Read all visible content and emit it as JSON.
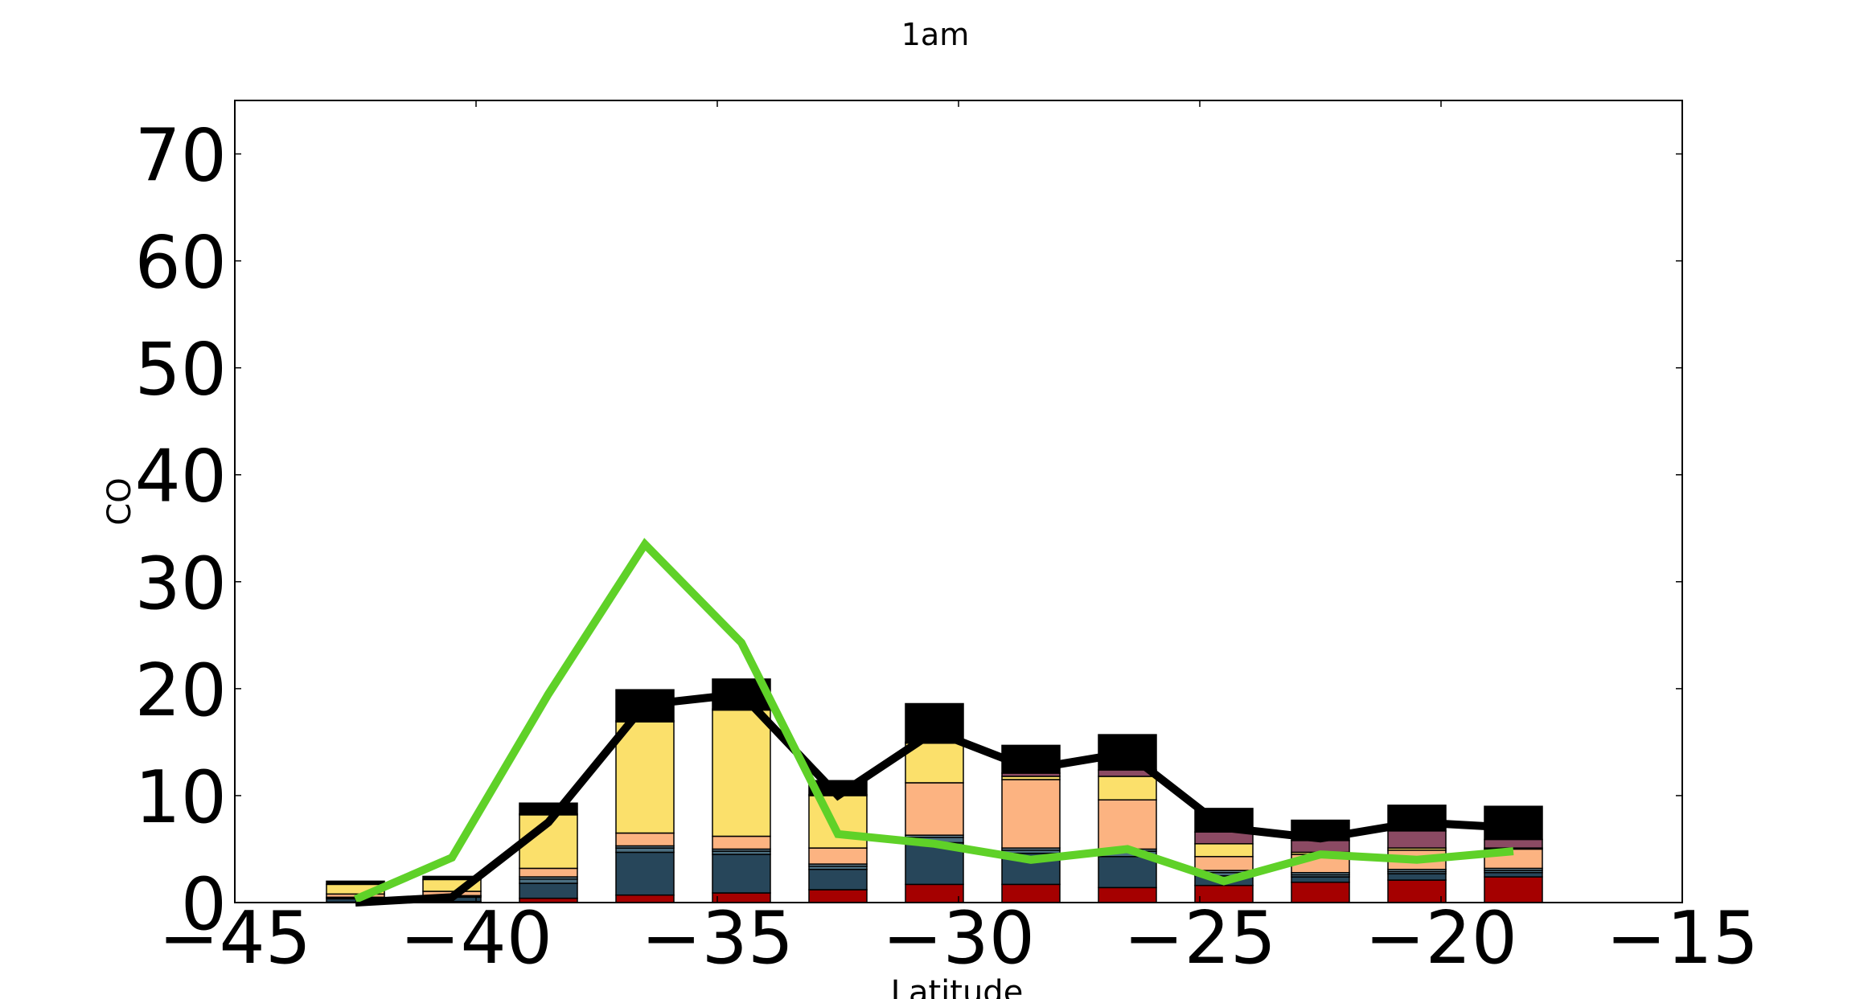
{
  "chart_data": {
    "type": "bar",
    "title": "1am",
    "xlabel": "Latitude",
    "ylabel": "CO",
    "xlim": [
      -45,
      -15
    ],
    "ylim": [
      0,
      75
    ],
    "xticks": [
      -45,
      -40,
      -35,
      -30,
      -25,
      -20,
      -15
    ],
    "yticks": [
      0,
      10,
      20,
      30,
      40,
      50,
      60,
      70
    ],
    "xtick_labels": [
      "−45",
      "−40",
      "−35",
      "−30",
      "−25",
      "−20",
      "−15"
    ],
    "ytick_labels": [
      "0",
      "10",
      "20",
      "30",
      "40",
      "50",
      "60",
      "70"
    ],
    "grid": false,
    "legend": "none",
    "bar_width": 1.2,
    "x": [
      -42.5,
      -40.5,
      -38.5,
      -36.5,
      -34.5,
      -32.5,
      -30.5,
      -28.5,
      -26.5,
      -24.5,
      -22.5,
      -20.5,
      -18.5
    ],
    "stacked_series": [
      {
        "color": "#a50000",
        "values": [
          0.05,
          0.1,
          0.4,
          0.7,
          0.9,
          1.2,
          1.7,
          1.7,
          1.4,
          1.6,
          1.9,
          2.1,
          2.4
        ]
      },
      {
        "color": "#27465a",
        "values": [
          0.3,
          0.4,
          1.4,
          4.0,
          3.6,
          1.9,
          3.9,
          2.9,
          2.9,
          0.9,
          0.5,
          0.6,
          0.4
        ]
      },
      {
        "color": "#4b6e80",
        "values": [
          0.1,
          0.1,
          0.4,
          0.4,
          0.3,
          0.3,
          0.5,
          0.3,
          0.5,
          0.3,
          0.2,
          0.2,
          0.2
        ]
      },
      {
        "color": "#6f8fa0",
        "values": [
          0.05,
          0.05,
          0.2,
          0.2,
          0.2,
          0.2,
          0.2,
          0.2,
          0.2,
          0.2,
          0.2,
          0.2,
          0.2
        ]
      },
      {
        "color": "#fcb381",
        "values": [
          0.3,
          0.4,
          0.8,
          1.2,
          1.2,
          1.5,
          4.9,
          6.4,
          4.6,
          1.3,
          1.7,
          1.8,
          1.8
        ]
      },
      {
        "color": "#fbe06b",
        "values": [
          0.9,
          1.1,
          5.0,
          10.4,
          11.8,
          4.9,
          3.7,
          0.3,
          2.2,
          1.2,
          0.2,
          0.2,
          0.1
        ]
      },
      {
        "color": "#8b4a63",
        "values": [
          0.0,
          0.0,
          0.1,
          0.1,
          0.1,
          0.1,
          0.1,
          0.3,
          0.6,
          1.1,
          1.1,
          1.6,
          0.8
        ]
      },
      {
        "color": "#000000",
        "values": [
          0.3,
          0.3,
          1.0,
          2.9,
          2.8,
          1.3,
          3.6,
          2.6,
          3.3,
          2.2,
          1.9,
          2.4,
          3.1
        ]
      }
    ],
    "series": [
      {
        "type": "line",
        "color": "#000000",
        "x": [
          -42.5,
          -40.5,
          -38.5,
          -36.5,
          -34.5,
          -32.5,
          -30.5,
          -28.5,
          -26.5,
          -24.5,
          -22.5,
          -20.5,
          -18.5
        ],
        "values": [
          0.0,
          0.5,
          7.5,
          18.5,
          19.5,
          10.0,
          16.0,
          12.5,
          14.0,
          7.0,
          6.0,
          7.5,
          7.0
        ]
      },
      {
        "type": "line",
        "color": "#5fd128",
        "x": [
          -42.5,
          -40.5,
          -38.5,
          -36.5,
          -34.5,
          -32.5,
          -30.5,
          -28.5,
          -26.5,
          -24.5,
          -22.5,
          -20.5,
          -18.5
        ],
        "values": [
          0.3,
          4.2,
          19.5,
          33.5,
          24.3,
          6.4,
          5.5,
          4.0,
          5.0,
          2.0,
          4.5,
          4.0,
          4.8
        ]
      }
    ]
  }
}
